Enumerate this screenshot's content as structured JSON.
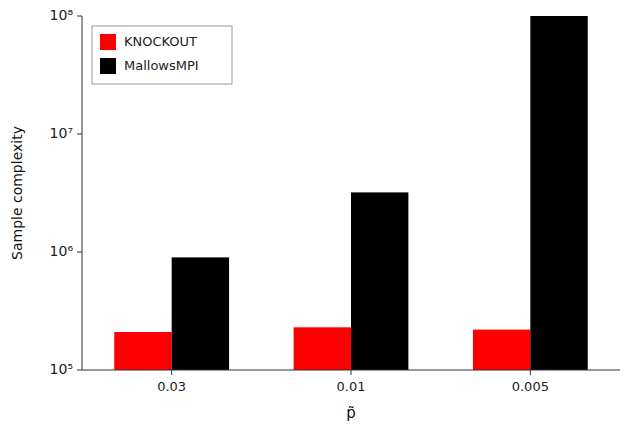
{
  "chart_data": {
    "type": "bar",
    "categories": [
      "0.03",
      "0.01",
      "0.005"
    ],
    "series": [
      {
        "name": "KNOCKOUT",
        "color": "#ff0000",
        "values": [
          210000,
          230000,
          220000
        ]
      },
      {
        "name": "MallowsMPI",
        "color": "#000000",
        "values": [
          900000,
          3200000,
          100000000
        ]
      }
    ],
    "xlabel": "p̃",
    "ylabel": "Sample complexity",
    "ylim": [
      100000,
      100000000
    ],
    "yticks": [
      {
        "value": 100000,
        "label": "10⁵"
      },
      {
        "value": 1000000,
        "label": "10⁶"
      },
      {
        "value": 10000000,
        "label": "10⁷"
      },
      {
        "value": 100000000,
        "label": "10⁸"
      }
    ],
    "log": "y",
    "legend": "upper left",
    "grid": false
  }
}
